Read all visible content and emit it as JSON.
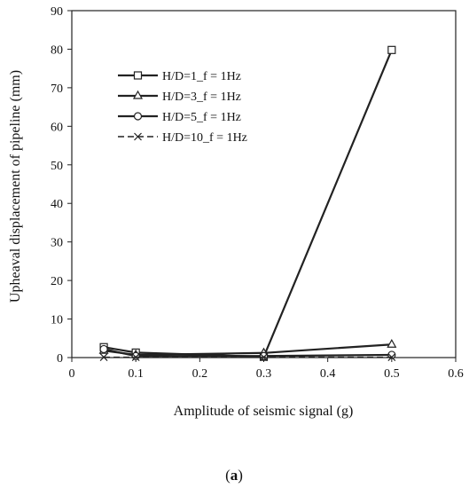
{
  "chart_data": {
    "type": "line",
    "xlabel": "Amplitude of seismic signal (g)",
    "ylabel": "Upheaval displacement of pipeline (mm)",
    "xlim": [
      0,
      0.6
    ],
    "ylim": [
      0,
      90
    ],
    "xticks": [
      "0",
      "0.1",
      "0.2",
      "0.3",
      "0.4",
      "0.5",
      "0.6"
    ],
    "yticks": [
      "0",
      "10",
      "20",
      "30",
      "40",
      "50",
      "60",
      "70",
      "80",
      "90"
    ],
    "grid": false,
    "legend_position": "upper-left",
    "x": [
      0.05,
      0.1,
      0.3,
      0.5
    ],
    "series": [
      {
        "name": "H/D=1_f = 1Hz",
        "marker": "square",
        "values": [
          2.7,
          1.3,
          0.2,
          79.8
        ]
      },
      {
        "name": "H/D=3_f = 1Hz",
        "marker": "triangle",
        "values": [
          1.8,
          0.7,
          1.2,
          3.4
        ]
      },
      {
        "name": "H/D=5_f = 1Hz",
        "marker": "circle",
        "values": [
          2.2,
          0.4,
          0.4,
          0.7
        ]
      },
      {
        "name": "H/D=10_f = 1Hz",
        "marker": "x",
        "values": [
          0.1,
          0.1,
          0.1,
          0.1
        ]
      }
    ]
  },
  "caption": {
    "label_open": "(",
    "label_letter": "a",
    "label_close": ")"
  }
}
